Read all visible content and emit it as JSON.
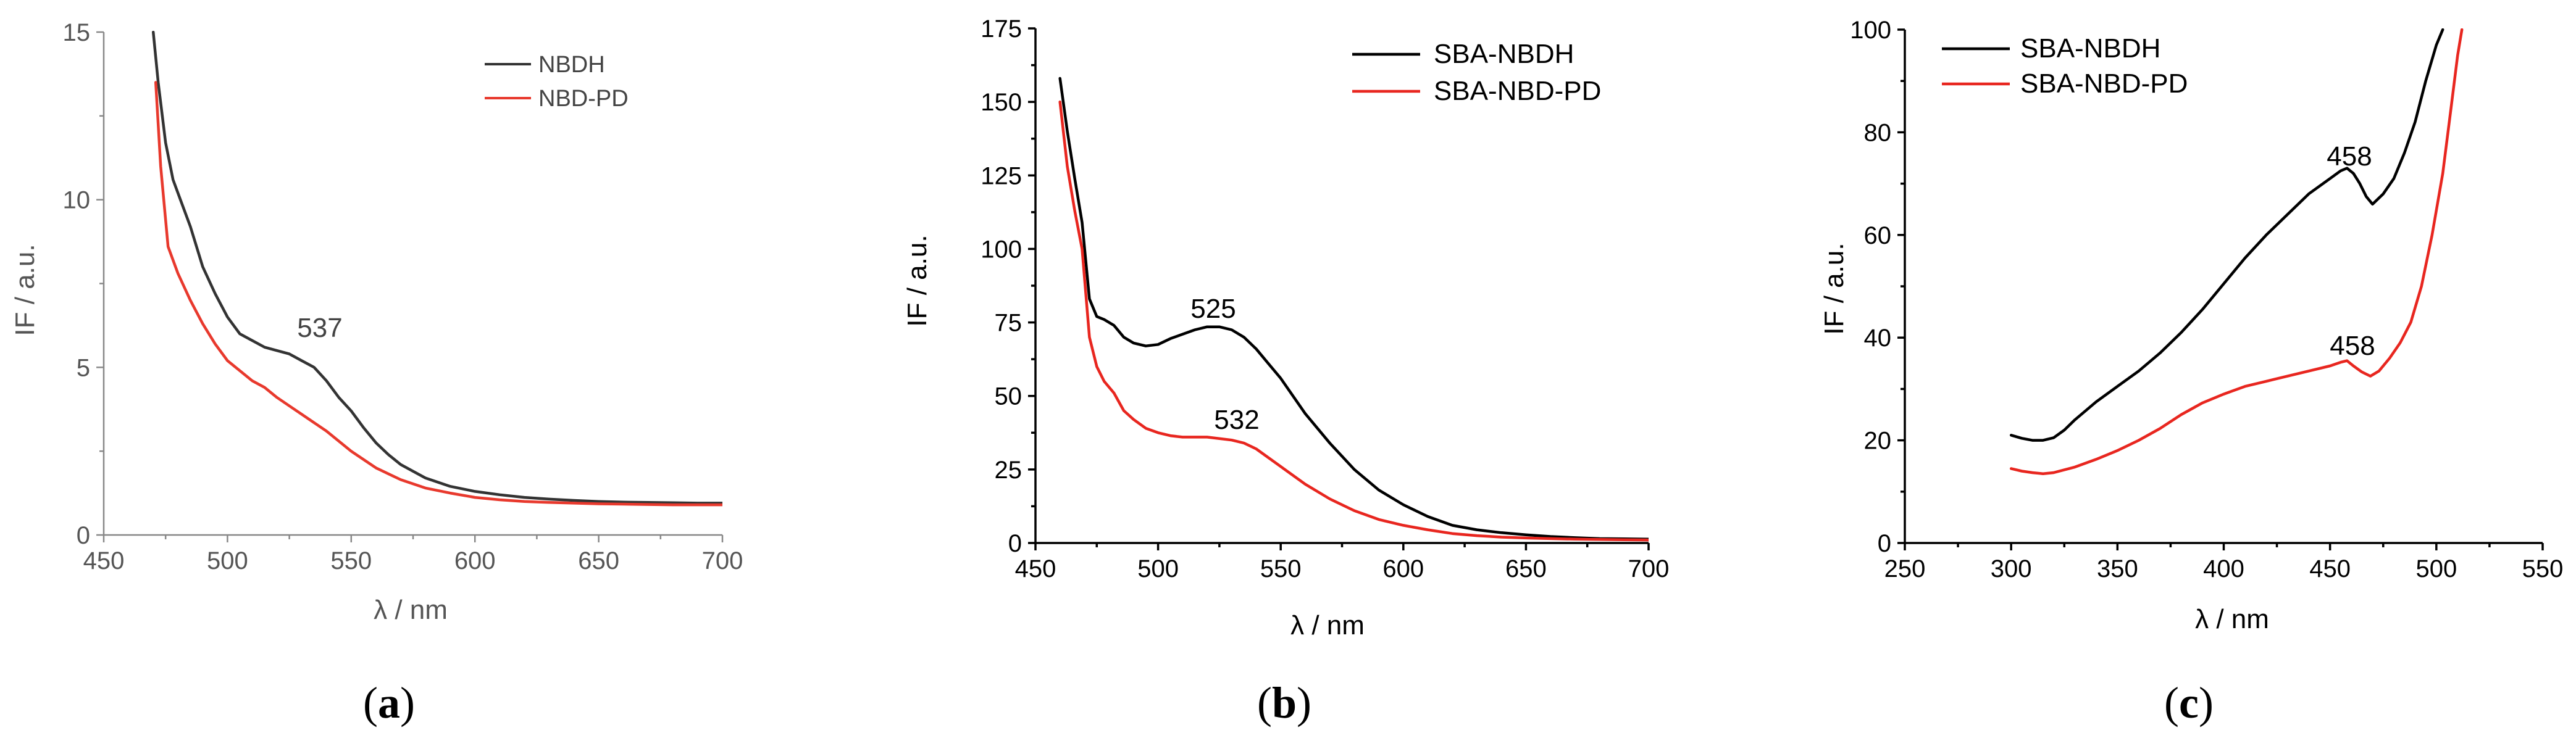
{
  "chart_data": [
    {
      "panel": "(a)",
      "type": "line",
      "xlabel": "λ / nm",
      "ylabel": "IF / a.u.",
      "xlim": [
        450,
        700
      ],
      "ylim": [
        0,
        15
      ],
      "xticks": [
        450,
        500,
        550,
        600,
        650,
        700
      ],
      "yticks": [
        0,
        5,
        10,
        15
      ],
      "legend": "top-right",
      "series": [
        {
          "name": "NBDH",
          "color": "#333333",
          "x": [
            470,
            472,
            475,
            478,
            481,
            485,
            490,
            495,
            500,
            505,
            510,
            515,
            520,
            525,
            530,
            535,
            540,
            545,
            550,
            555,
            560,
            565,
            570,
            580,
            590,
            600,
            610,
            620,
            630,
            640,
            650,
            660,
            670,
            680,
            690,
            700
          ],
          "y": [
            15,
            13.5,
            11.7,
            10.6,
            10,
            9.2,
            8,
            7.2,
            6.5,
            6,
            5.8,
            5.6,
            5.5,
            5.4,
            5.2,
            5,
            4.6,
            4.1,
            3.7,
            3.2,
            2.75,
            2.4,
            2.1,
            1.7,
            1.45,
            1.3,
            1.2,
            1.12,
            1.07,
            1.03,
            1,
            0.98,
            0.97,
            0.96,
            0.95,
            0.95
          ]
        },
        {
          "name": "NBD-PD",
          "color": "#e8392d",
          "x": [
            471,
            473,
            476,
            480,
            485,
            490,
            495,
            500,
            505,
            510,
            515,
            520,
            525,
            530,
            540,
            550,
            560,
            570,
            580,
            590,
            600,
            610,
            620,
            630,
            640,
            650,
            660,
            670,
            680,
            690,
            700
          ],
          "y": [
            13.5,
            11,
            8.6,
            7.8,
            7,
            6.3,
            5.7,
            5.2,
            4.9,
            4.6,
            4.4,
            4.1,
            3.85,
            3.6,
            3.1,
            2.5,
            2,
            1.65,
            1.4,
            1.25,
            1.12,
            1.05,
            1,
            0.97,
            0.95,
            0.93,
            0.92,
            0.91,
            0.9,
            0.9,
            0.9
          ]
        }
      ],
      "annotations": [
        {
          "text": "537",
          "x": 537,
          "y": 5.9
        }
      ]
    },
    {
      "panel": "(b)",
      "type": "line",
      "xlabel": "λ / nm",
      "ylabel": "IF / a.u.",
      "xlim": [
        450,
        700
      ],
      "ylim": [
        0,
        175
      ],
      "xticks": [
        450,
        500,
        550,
        600,
        650,
        700
      ],
      "yticks": [
        0,
        25,
        50,
        75,
        100,
        125,
        150,
        175
      ],
      "legend": "top-right",
      "series": [
        {
          "name": "SBA-NBDH",
          "color": "#000000",
          "x": [
            460,
            463,
            466,
            469,
            472,
            475,
            478,
            482,
            486,
            490,
            495,
            500,
            505,
            510,
            515,
            520,
            525,
            530,
            535,
            540,
            545,
            550,
            560,
            570,
            580,
            590,
            600,
            610,
            620,
            630,
            640,
            650,
            660,
            670,
            680,
            690,
            700
          ],
          "y": [
            158,
            140,
            124,
            109,
            83,
            77,
            76,
            74,
            70,
            68,
            67,
            67.5,
            69.5,
            71,
            72.5,
            73.5,
            73.5,
            72.5,
            70,
            66,
            61,
            56,
            44,
            34,
            25,
            18,
            13,
            9,
            6,
            4.5,
            3.5,
            2.8,
            2.2,
            1.8,
            1.5,
            1.4,
            1.3
          ]
        },
        {
          "name": "SBA-NBD-PD",
          "color": "#e8261f",
          "x": [
            460,
            463,
            466,
            469,
            472,
            475,
            478,
            482,
            486,
            490,
            495,
            500,
            505,
            510,
            520,
            530,
            535,
            540,
            550,
            560,
            570,
            580,
            590,
            600,
            610,
            620,
            630,
            640,
            650,
            660,
            670,
            680,
            690,
            700
          ],
          "y": [
            150,
            128,
            113,
            100,
            70,
            60,
            55,
            51,
            45,
            42,
            39,
            37.5,
            36.5,
            36,
            36,
            35,
            34,
            32,
            26,
            20,
            15,
            11,
            8,
            6,
            4.5,
            3.2,
            2.5,
            2,
            1.7,
            1.5,
            1.3,
            1.2,
            1.1,
            1
          ]
        }
      ],
      "annotations": [
        {
          "text": "525",
          "x": 525,
          "y": 82
        },
        {
          "text": "532",
          "x": 532,
          "y": 43
        }
      ]
    },
    {
      "panel": "(c)",
      "type": "line",
      "xlabel": "λ / nm",
      "ylabel": "IF / a.u.",
      "xlim": [
        250,
        550
      ],
      "ylim": [
        0,
        100
      ],
      "xticks": [
        250,
        300,
        350,
        400,
        450,
        500,
        550
      ],
      "yticks": [
        0,
        20,
        40,
        60,
        80,
        100
      ],
      "legend": "top-left",
      "series": [
        {
          "name": "SBA-NBDH",
          "color": "#000000",
          "x": [
            300,
            305,
            310,
            315,
            320,
            325,
            330,
            340,
            350,
            360,
            370,
            380,
            390,
            400,
            410,
            420,
            430,
            440,
            450,
            455,
            458,
            461,
            464,
            467,
            470,
            475,
            480,
            485,
            490,
            495,
            500,
            503
          ],
          "y": [
            21,
            20.4,
            20,
            20,
            20.5,
            22,
            24,
            27.5,
            30.5,
            33.5,
            37,
            41,
            45.5,
            50.5,
            55.5,
            60,
            64,
            68,
            71,
            72.5,
            73,
            72,
            70,
            67.5,
            66,
            68,
            71,
            76,
            82,
            90,
            97,
            100
          ]
        },
        {
          "name": "SBA-NBD-PD",
          "color": "#e8261f",
          "x": [
            300,
            305,
            310,
            315,
            320,
            330,
            340,
            350,
            360,
            370,
            380,
            390,
            400,
            410,
            420,
            430,
            440,
            450,
            455,
            458,
            461,
            465,
            469,
            473,
            478,
            483,
            488,
            493,
            498,
            503,
            507,
            510,
            512
          ],
          "y": [
            14.5,
            14,
            13.7,
            13.5,
            13.7,
            14.8,
            16.3,
            18,
            20,
            22.3,
            25,
            27.3,
            29,
            30.5,
            31.5,
            32.5,
            33.5,
            34.5,
            35.2,
            35.5,
            34.5,
            33.3,
            32.5,
            33.5,
            36,
            39,
            43,
            50,
            60,
            72,
            85,
            95,
            100
          ]
        }
      ],
      "annotations": [
        {
          "text": "458",
          "x": 457,
          "y": 75.5
        },
        {
          "text": "458",
          "x": 458,
          "y": 38
        }
      ]
    }
  ],
  "panel_labels": [
    "(a)",
    "(b)",
    "(c)"
  ],
  "panel_label_parts": [
    {
      "open": "(",
      "letter": "a",
      "close": ")"
    },
    {
      "open": "(",
      "letter": "b",
      "close": ")"
    },
    {
      "open": "(",
      "letter": "c",
      "close": ")"
    }
  ]
}
